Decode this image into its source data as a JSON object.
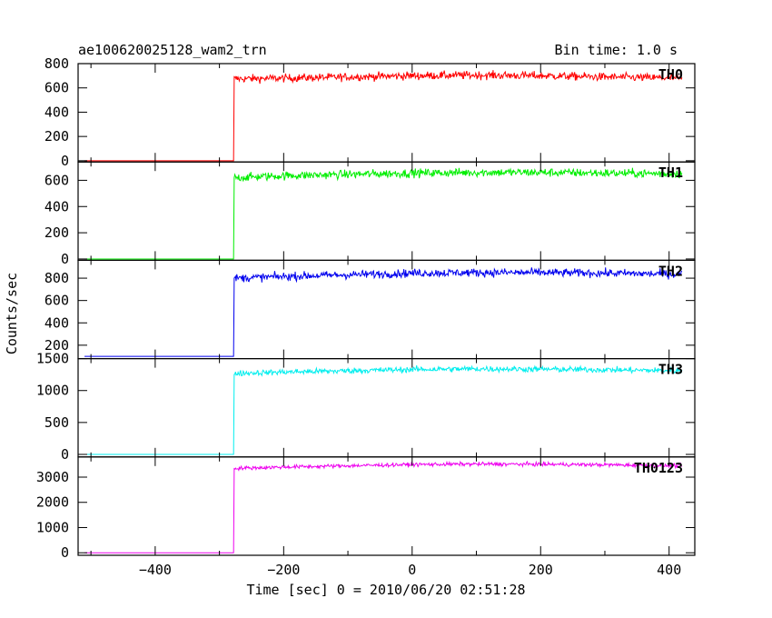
{
  "header": {
    "title": "ae100620025128_wam2_trn",
    "bin_time": "Bin time: 1.0 s"
  },
  "chart_data": {
    "type": "line",
    "title": "ae100620025128_wam2_trn",
    "xlabel": "Time [sec] 0 = 2010/06/20 02:51:28",
    "ylabel": "Counts/sec",
    "xlim": [
      -520,
      440
    ],
    "x_ticks": [
      -400,
      -200,
      0,
      200,
      400
    ],
    "x_tick_labels": [
      "−400",
      "−200",
      "0",
      "200",
      "400"
    ],
    "data_x_range": [
      -510,
      420
    ],
    "onset_time": -277,
    "grid": false,
    "legend": "none",
    "series": [
      {
        "name": "TH0",
        "color": "#ff0000",
        "ylim": [
          -10,
          800
        ],
        "y_ticks": [
          0,
          200,
          400,
          600,
          800
        ],
        "background_level": 0,
        "points": [
          [
            -277,
            675
          ],
          [
            -200,
            680
          ],
          [
            -100,
            690
          ],
          [
            0,
            700
          ],
          [
            100,
            705
          ],
          [
            200,
            700
          ],
          [
            300,
            690
          ],
          [
            420,
            680
          ]
        ]
      },
      {
        "name": "TH1",
        "color": "#00ee00",
        "ylim": [
          -10,
          740
        ],
        "y_ticks": [
          0,
          200,
          400,
          600
        ],
        "background_level": 0,
        "points": [
          [
            -277,
            620
          ],
          [
            -200,
            635
          ],
          [
            -100,
            645
          ],
          [
            0,
            655
          ],
          [
            100,
            660
          ],
          [
            200,
            660
          ],
          [
            300,
            655
          ],
          [
            420,
            650
          ]
        ]
      },
      {
        "name": "TH2",
        "color": "#0000ee",
        "ylim": [
          80,
          960
        ],
        "y_ticks": [
          200,
          400,
          600,
          800
        ],
        "background_level": 100,
        "points": [
          [
            -277,
            800
          ],
          [
            -200,
            815
          ],
          [
            -100,
            830
          ],
          [
            0,
            845
          ],
          [
            100,
            850
          ],
          [
            200,
            850
          ],
          [
            300,
            845
          ],
          [
            420,
            835
          ]
        ]
      },
      {
        "name": "TH3",
        "color": "#00eeee",
        "ylim": [
          -40,
          1500
        ],
        "y_ticks": [
          0,
          500,
          1000,
          1500
        ],
        "background_level": 0,
        "points": [
          [
            -277,
            1270
          ],
          [
            -200,
            1290
          ],
          [
            -100,
            1310
          ],
          [
            0,
            1330
          ],
          [
            100,
            1340
          ],
          [
            200,
            1335
          ],
          [
            300,
            1325
          ],
          [
            420,
            1310
          ]
        ]
      },
      {
        "name": "TH0123",
        "color": "#ee00ee",
        "ylim": [
          -100,
          3800
        ],
        "y_ticks": [
          0,
          1000,
          2000,
          3000
        ],
        "background_level": 0,
        "points": [
          [
            -277,
            3350
          ],
          [
            -200,
            3400
          ],
          [
            -100,
            3450
          ],
          [
            0,
            3500
          ],
          [
            100,
            3520
          ],
          [
            200,
            3510
          ],
          [
            300,
            3490
          ],
          [
            420,
            3450
          ]
        ]
      }
    ]
  }
}
